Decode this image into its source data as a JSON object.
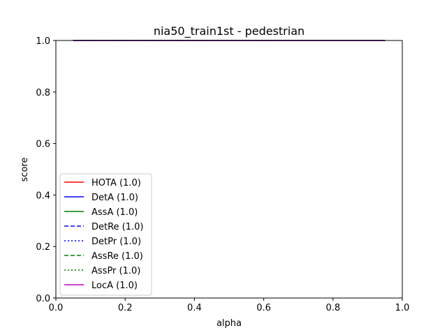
{
  "chart_data": {
    "type": "line",
    "title": "nia50_train1st - pedestrian",
    "xlabel": "alpha",
    "ylabel": "score",
    "xlim": [
      0,
      1
    ],
    "ylim": [
      0,
      1
    ],
    "xticks": [
      "0.0",
      "0.2",
      "0.4",
      "0.6",
      "0.8",
      "1.0"
    ],
    "yticks": [
      "0.0",
      "0.2",
      "0.4",
      "0.6",
      "0.8",
      "1.0"
    ],
    "grid": false,
    "legend_position": "lower-left",
    "x": [
      0.05,
      0.1,
      0.15,
      0.2,
      0.25,
      0.3,
      0.35,
      0.4,
      0.45,
      0.5,
      0.55,
      0.6,
      0.65,
      0.7,
      0.75,
      0.8,
      0.85,
      0.9,
      0.95
    ],
    "series": [
      {
        "name": "HOTA (1.0)",
        "color": "#ff0000",
        "dash": "solid",
        "values": [
          1,
          1,
          1,
          1,
          1,
          1,
          1,
          1,
          1,
          1,
          1,
          1,
          1,
          1,
          1,
          1,
          1,
          1,
          1
        ]
      },
      {
        "name": "DetA (1.0)",
        "color": "#0000ff",
        "dash": "solid",
        "values": [
          1,
          1,
          1,
          1,
          1,
          1,
          1,
          1,
          1,
          1,
          1,
          1,
          1,
          1,
          1,
          1,
          1,
          1,
          1
        ]
      },
      {
        "name": "AssA (1.0)",
        "color": "#008000",
        "dash": "solid",
        "values": [
          1,
          1,
          1,
          1,
          1,
          1,
          1,
          1,
          1,
          1,
          1,
          1,
          1,
          1,
          1,
          1,
          1,
          1,
          1
        ]
      },
      {
        "name": "DetRe (1.0)",
        "color": "#0000ff",
        "dash": "dashed",
        "values": [
          1,
          1,
          1,
          1,
          1,
          1,
          1,
          1,
          1,
          1,
          1,
          1,
          1,
          1,
          1,
          1,
          1,
          1,
          1
        ]
      },
      {
        "name": "DetPr (1.0)",
        "color": "#0000ff",
        "dash": "dotted",
        "values": [
          1,
          1,
          1,
          1,
          1,
          1,
          1,
          1,
          1,
          1,
          1,
          1,
          1,
          1,
          1,
          1,
          1,
          1,
          1
        ]
      },
      {
        "name": "AssRe (1.0)",
        "color": "#008000",
        "dash": "dashed",
        "values": [
          1,
          1,
          1,
          1,
          1,
          1,
          1,
          1,
          1,
          1,
          1,
          1,
          1,
          1,
          1,
          1,
          1,
          1,
          1
        ]
      },
      {
        "name": "AssPr (1.0)",
        "color": "#008000",
        "dash": "dotted",
        "values": [
          1,
          1,
          1,
          1,
          1,
          1,
          1,
          1,
          1,
          1,
          1,
          1,
          1,
          1,
          1,
          1,
          1,
          1,
          1
        ]
      },
      {
        "name": "LocA (1.0)",
        "color": "#bf00bf",
        "dash": "solid",
        "values": [
          1,
          1,
          1,
          1,
          1,
          1,
          1,
          1,
          1,
          1,
          1,
          1,
          1,
          1,
          1,
          1,
          1,
          1,
          1
        ]
      }
    ]
  }
}
